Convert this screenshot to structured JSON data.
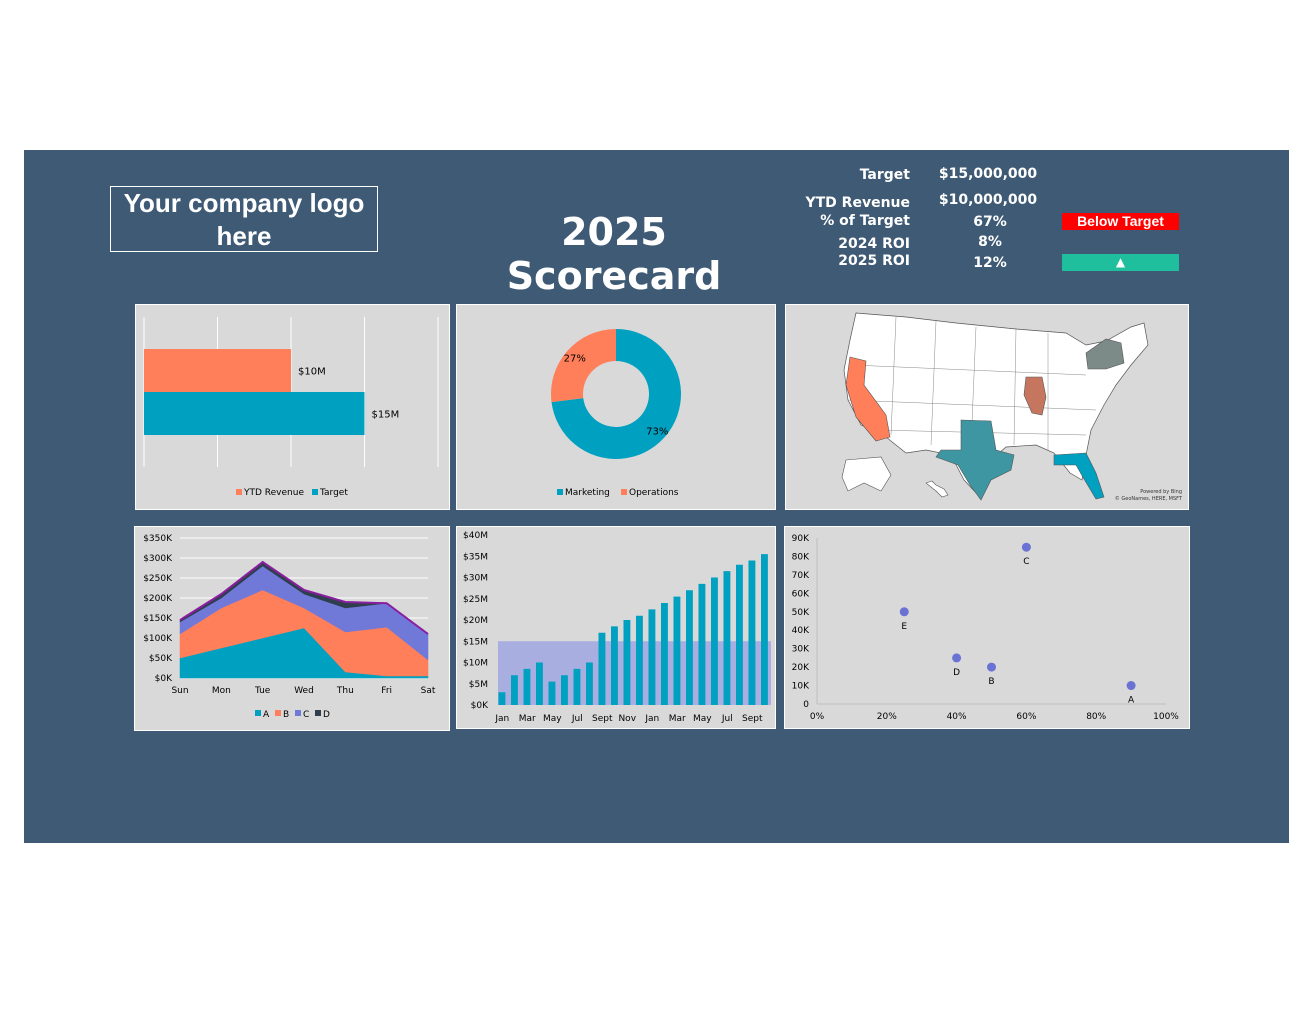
{
  "header": {
    "logo_text": "Your company logo here",
    "title": "2025 Scorecard"
  },
  "kpis": [
    {
      "label": "Target",
      "value": "$15,000,000"
    },
    {
      "label": "YTD Revenue",
      "value": "$10,000,000"
    },
    {
      "label": "% of Target",
      "value": "67%"
    },
    {
      "label": "2024 ROI",
      "value": "8%"
    },
    {
      "label": "2025 ROI",
      "value": "12%"
    }
  ],
  "status": {
    "target_badge": "Below Target",
    "roi_badge": "▲",
    "colors": {
      "below": "#ff0000",
      "up": "#1fbe9c"
    }
  },
  "map": {
    "credit_line1": "Powered by Bing",
    "credit_line2": "© GeoNames, HERE, MSFT",
    "highlighted_states": [
      {
        "state": "California",
        "color": "#ff7f5a"
      },
      {
        "state": "Texas",
        "color": "#3e96a2"
      },
      {
        "state": "Florida",
        "color": "#00a0c0"
      },
      {
        "state": "Illinois",
        "color": "#c6765e"
      },
      {
        "state": "New York",
        "color": "#7c8a88"
      }
    ]
  },
  "chart_data": [
    {
      "type": "bar",
      "orientation": "horizontal",
      "categories": [
        "YTD Revenue",
        "Target"
      ],
      "values": [
        10,
        15
      ],
      "data_labels": [
        "$10M",
        "$15M"
      ],
      "xlim": [
        0,
        20
      ],
      "grid": true,
      "legend": "bottom",
      "colors": [
        "#ff7f5a",
        "#00a0c0"
      ]
    },
    {
      "type": "pie",
      "donut": true,
      "categories": [
        "Marketing",
        "Operations"
      ],
      "values": [
        73,
        27
      ],
      "data_labels": [
        "73%",
        "27%"
      ],
      "legend": "bottom",
      "colors": [
        "#00a0c0",
        "#ff7f5a"
      ]
    },
    {
      "type": "area",
      "stacked": true,
      "categories": [
        "Sun",
        "Mon",
        "Tue",
        "Wed",
        "Thu",
        "Fri",
        "Sat"
      ],
      "series": [
        {
          "name": "A",
          "values": [
            50,
            75,
            100,
            125,
            15,
            5,
            5
          ],
          "color": "#00a0c0"
        },
        {
          "name": "B",
          "values": [
            60,
            100,
            120,
            50,
            100,
            122,
            40
          ],
          "color": "#ff7f5a"
        },
        {
          "name": "C",
          "values": [
            30,
            25,
            60,
            35,
            60,
            60,
            65
          ],
          "color": "#7078d8"
        },
        {
          "name": "D",
          "values": [
            5,
            10,
            10,
            10,
            15,
            0,
            0
          ],
          "color": "#2e3e4e"
        }
      ],
      "y_ticks": [
        "$0K",
        "$50K",
        "$100K",
        "$150K",
        "$200K",
        "$250K",
        "$300K",
        "$350K"
      ],
      "ylim": [
        0,
        350
      ],
      "grid": true,
      "legend": "bottom"
    },
    {
      "type": "bar",
      "x": [
        "Jan",
        "Feb",
        "Mar",
        "Apr",
        "May",
        "Jun",
        "Jul",
        "Aug",
        "Sept",
        "Oct",
        "Nov",
        "Dec",
        "Jan",
        "Feb",
        "Mar",
        "Apr",
        "May",
        "Jun",
        "Jul",
        "Aug",
        "Sept",
        "Oct"
      ],
      "x_tick_labels": [
        "Jan",
        "Mar",
        "May",
        "Jul",
        "Sept",
        "Nov",
        "Jan",
        "Mar",
        "May",
        "Jul",
        "Sept"
      ],
      "values": [
        3,
        7,
        8.5,
        10,
        5.5,
        7,
        8.5,
        10,
        17,
        18.5,
        20,
        21,
        22.5,
        24,
        25.5,
        27,
        28.5,
        30,
        31.5,
        33,
        34,
        35.5
      ],
      "target_band": 15,
      "y_ticks": [
        "$0K",
        "$5M",
        "$10M",
        "$15M",
        "$20M",
        "$25M",
        "$30M",
        "$35M",
        "$40M"
      ],
      "ylim": [
        0,
        40
      ],
      "colors": {
        "bar": "#00a0c0",
        "band": "#9fa6e0"
      }
    },
    {
      "type": "scatter",
      "points": [
        {
          "label": "A",
          "x": 0.9,
          "y": 10000
        },
        {
          "label": "B",
          "x": 0.5,
          "y": 20000
        },
        {
          "label": "C",
          "x": 0.6,
          "y": 85000
        },
        {
          "label": "D",
          "x": 0.4,
          "y": 25000
        },
        {
          "label": "E",
          "x": 0.25,
          "y": 50000
        }
      ],
      "x_ticks": [
        "0%",
        "20%",
        "40%",
        "60%",
        "80%",
        "100%"
      ],
      "y_ticks": [
        "0",
        "10K",
        "20K",
        "30K",
        "40K",
        "50K",
        "60K",
        "70K",
        "80K",
        "90K"
      ],
      "xlim": [
        0,
        1
      ],
      "ylim": [
        0,
        90000
      ],
      "color": "#6a72d4"
    }
  ]
}
